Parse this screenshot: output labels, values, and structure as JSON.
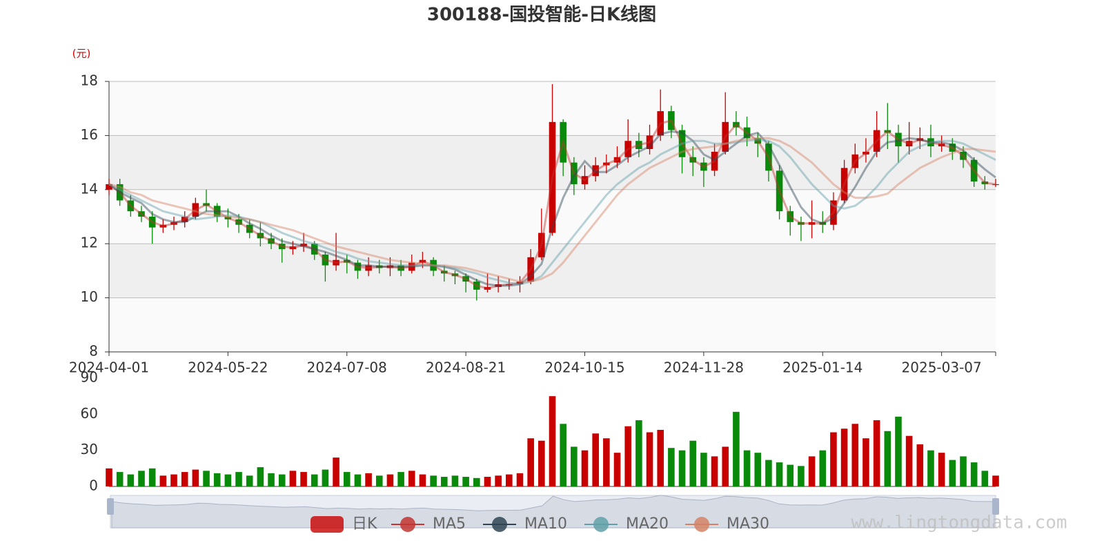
{
  "chart_data": {
    "type": "candlestick",
    "title": "300188-国投智能-日K线图",
    "y_unit": "(元)",
    "watermark": "www.lingtongdata.com",
    "ylim": [
      8,
      18
    ],
    "yticks": [
      8,
      10,
      12,
      14,
      16,
      18
    ],
    "categories": [
      "2024-04-01",
      null,
      null,
      null,
      null,
      null,
      null,
      null,
      null,
      null,
      null,
      "2024-05-22",
      null,
      null,
      null,
      null,
      null,
      null,
      null,
      null,
      null,
      null,
      "2024-07-08",
      null,
      null,
      null,
      null,
      null,
      null,
      null,
      null,
      null,
      null,
      "2024-08-21",
      null,
      null,
      null,
      null,
      null,
      null,
      null,
      null,
      null,
      null,
      "2024-10-15",
      null,
      null,
      null,
      null,
      null,
      null,
      null,
      null,
      null,
      null,
      "2024-11-28",
      null,
      null,
      null,
      null,
      null,
      null,
      null,
      null,
      null,
      null,
      "2025-01-14",
      null,
      null,
      null,
      null,
      null,
      null,
      null,
      null,
      null,
      null,
      "2025-03-07",
      null,
      null,
      null,
      null,
      null
    ],
    "candles": {
      "name": "日K",
      "up_color": "#c80000",
      "down_color": "#0a8a0a",
      "open": [
        14.0,
        14.2,
        13.6,
        13.2,
        13.0,
        12.6,
        12.7,
        12.8,
        13.0,
        13.5,
        13.4,
        13.0,
        12.9,
        12.7,
        12.4,
        12.2,
        12.0,
        11.8,
        11.9,
        12.0,
        11.6,
        11.2,
        11.4,
        11.3,
        11.0,
        11.2,
        11.1,
        11.2,
        11.0,
        11.3,
        11.4,
        11.0,
        10.9,
        10.8,
        10.6,
        10.3,
        10.4,
        10.5,
        10.5,
        10.6,
        11.5,
        12.4,
        16.5,
        15.0,
        14.2,
        14.5,
        14.9,
        15.0,
        15.2,
        15.8,
        15.5,
        16.0,
        16.9,
        16.2,
        15.2,
        15.0,
        14.7,
        15.4,
        16.5,
        16.3,
        15.9,
        15.7,
        14.7,
        13.2,
        12.8,
        12.7,
        12.8,
        12.7,
        13.6,
        14.8,
        15.3,
        15.4,
        16.2,
        16.1,
        15.6,
        15.8,
        15.9,
        15.6,
        15.7,
        15.4,
        15.1,
        14.3,
        14.2
      ],
      "close": [
        14.2,
        13.6,
        13.2,
        13.0,
        12.6,
        12.7,
        12.8,
        13.0,
        13.5,
        13.4,
        13.0,
        12.9,
        12.7,
        12.4,
        12.2,
        12.0,
        11.8,
        11.9,
        12.0,
        11.6,
        11.2,
        11.4,
        11.3,
        11.0,
        11.2,
        11.1,
        11.2,
        11.0,
        11.3,
        11.4,
        11.0,
        10.9,
        10.8,
        10.6,
        10.3,
        10.4,
        10.5,
        10.5,
        10.6,
        11.5,
        12.4,
        16.5,
        15.0,
        14.2,
        14.5,
        14.9,
        15.0,
        15.2,
        15.8,
        15.5,
        16.0,
        16.9,
        16.2,
        15.2,
        15.0,
        14.7,
        15.4,
        16.5,
        16.3,
        15.9,
        15.7,
        14.7,
        13.2,
        12.8,
        12.7,
        12.8,
        12.7,
        13.6,
        14.8,
        15.3,
        15.4,
        16.2,
        16.1,
        15.6,
        15.8,
        15.9,
        15.6,
        15.7,
        15.4,
        15.1,
        14.3,
        14.2,
        14.2
      ],
      "high": [
        14.4,
        14.4,
        13.8,
        13.4,
        13.2,
        12.9,
        13.0,
        13.2,
        13.7,
        14.0,
        13.5,
        13.3,
        13.1,
        12.9,
        12.8,
        12.4,
        12.2,
        12.1,
        12.4,
        12.1,
        11.7,
        12.4,
        11.6,
        11.4,
        11.5,
        11.4,
        11.5,
        11.4,
        11.6,
        11.7,
        11.5,
        11.2,
        11.0,
        10.9,
        10.7,
        10.9,
        10.8,
        10.7,
        10.8,
        11.8,
        13.3,
        17.9,
        16.6,
        15.2,
        14.9,
        15.2,
        15.3,
        15.6,
        16.6,
        16.1,
        16.4,
        17.7,
        17.1,
        16.4,
        15.6,
        15.2,
        15.7,
        17.6,
        16.9,
        16.7,
        16.1,
        15.8,
        14.9,
        13.4,
        13.0,
        13.6,
        13.2,
        13.9,
        15.1,
        15.7,
        15.9,
        16.9,
        17.2,
        16.4,
        16.5,
        16.3,
        16.4,
        16.0,
        15.9,
        15.6,
        15.2,
        14.5,
        14.4
      ],
      "low": [
        13.8,
        13.4,
        13.0,
        12.8,
        12.0,
        12.4,
        12.5,
        12.6,
        12.9,
        13.2,
        12.8,
        12.6,
        12.4,
        12.2,
        11.9,
        11.8,
        11.3,
        11.6,
        11.7,
        11.4,
        10.6,
        11.0,
        10.9,
        10.7,
        10.8,
        10.9,
        10.8,
        10.8,
        10.9,
        11.1,
        10.8,
        10.6,
        10.5,
        10.2,
        9.9,
        10.2,
        10.2,
        10.3,
        10.2,
        10.5,
        11.4,
        12.3,
        14.5,
        13.8,
        14.0,
        14.3,
        14.6,
        14.8,
        15.0,
        15.2,
        15.3,
        15.8,
        15.9,
        14.6,
        14.5,
        14.1,
        14.5,
        15.3,
        16.0,
        15.6,
        15.2,
        14.3,
        12.9,
        12.3,
        12.1,
        12.2,
        12.4,
        12.5,
        13.5,
        14.6,
        15.0,
        15.2,
        15.5,
        15.0,
        15.3,
        15.5,
        15.2,
        15.4,
        15.1,
        14.8,
        14.1,
        14.0,
        14.1
      ]
    },
    "series": [
      {
        "name": "MA5",
        "color": "#c23531",
        "values": [
          14.2,
          13.9,
          13.4,
          13.1,
          12.8,
          12.65,
          12.75,
          12.9,
          13.25,
          13.45,
          13.2,
          12.95,
          12.8,
          12.55,
          12.3,
          12.1,
          11.9,
          11.85,
          11.95,
          11.8,
          11.4,
          11.3,
          11.35,
          11.15,
          11.1,
          11.15,
          11.15,
          11.1,
          11.15,
          11.35,
          11.2,
          10.95,
          10.85,
          10.7,
          10.45,
          10.35,
          10.45,
          10.5,
          10.55,
          11.05,
          11.95,
          14.45,
          15.75,
          14.6,
          14.35,
          14.7,
          14.95,
          15.1,
          15.5,
          15.65,
          15.75,
          16.45,
          16.55,
          15.7,
          15.1,
          14.85,
          15.05,
          15.95,
          16.4,
          16.1,
          15.8,
          15.2,
          13.95,
          13.0,
          12.75,
          12.75,
          12.75,
          13.15,
          14.2,
          15.05,
          15.35,
          15.8,
          16.15,
          15.85,
          15.7,
          15.85,
          15.75,
          15.65,
          15.55,
          15.25,
          14.7,
          14.25,
          14.2
        ]
      },
      {
        "name": "MA10",
        "color": "#2f4554",
        "values": [
          14.2,
          13.9,
          13.7,
          13.5,
          13.1,
          12.9,
          12.8,
          12.8,
          13.0,
          13.2,
          13.2,
          13.2,
          13.0,
          12.75,
          12.55,
          12.3,
          12.1,
          12.0,
          11.9,
          11.8,
          11.7,
          11.55,
          11.4,
          11.2,
          11.2,
          11.15,
          11.15,
          11.15,
          11.15,
          11.2,
          11.2,
          11.15,
          11.05,
          10.85,
          10.65,
          10.5,
          10.45,
          10.45,
          10.5,
          10.8,
          11.25,
          12.6,
          13.7,
          14.5,
          15.05,
          14.65,
          14.65,
          14.9,
          15.2,
          15.4,
          15.6,
          16.05,
          16.15,
          16.1,
          15.8,
          15.3,
          15.1,
          15.4,
          15.7,
          16.0,
          16.1,
          15.65,
          14.9,
          14.1,
          13.35,
          12.9,
          12.75,
          12.95,
          13.5,
          14.1,
          14.8,
          15.4,
          15.75,
          15.8,
          15.9,
          15.85,
          15.75,
          15.75,
          15.65,
          15.45,
          15.1,
          14.75,
          14.45
        ]
      },
      {
        "name": "MA20",
        "color": "#61a0a8",
        "values": [
          14.2,
          14.0,
          13.8,
          13.6,
          13.4,
          13.2,
          13.1,
          13.0,
          12.9,
          12.95,
          13.0,
          13.05,
          13.0,
          12.9,
          12.8,
          12.6,
          12.4,
          12.25,
          12.1,
          12.0,
          11.85,
          11.7,
          11.6,
          11.45,
          11.35,
          11.3,
          11.25,
          11.2,
          11.2,
          11.2,
          11.2,
          11.15,
          11.1,
          11.0,
          10.9,
          10.75,
          10.65,
          10.55,
          10.5,
          10.6,
          10.8,
          11.3,
          11.8,
          12.3,
          12.8,
          13.3,
          13.8,
          14.2,
          14.5,
          14.8,
          15.0,
          15.3,
          15.5,
          15.7,
          15.8,
          15.8,
          15.7,
          15.7,
          15.75,
          15.8,
          15.85,
          15.8,
          15.6,
          15.2,
          14.7,
          14.2,
          13.8,
          13.4,
          13.3,
          13.4,
          13.7,
          14.1,
          14.6,
          15.0,
          15.4,
          15.6,
          15.75,
          15.8,
          15.8,
          15.7,
          15.5,
          15.3,
          15.1
        ]
      },
      {
        "name": "MA30",
        "color": "#d48265",
        "values": [
          14.2,
          14.1,
          13.9,
          13.8,
          13.6,
          13.5,
          13.4,
          13.3,
          13.2,
          13.1,
          13.05,
          13.0,
          12.95,
          12.9,
          12.8,
          12.7,
          12.6,
          12.5,
          12.35,
          12.2,
          12.05,
          11.9,
          11.8,
          11.7,
          11.6,
          11.5,
          11.4,
          11.35,
          11.3,
          11.25,
          11.2,
          11.2,
          11.15,
          11.1,
          11.0,
          10.9,
          10.8,
          10.7,
          10.6,
          10.6,
          10.7,
          10.9,
          11.3,
          11.8,
          12.3,
          12.8,
          13.3,
          13.8,
          14.2,
          14.5,
          14.8,
          15.0,
          15.2,
          15.4,
          15.5,
          15.55,
          15.6,
          15.7,
          15.8,
          15.85,
          15.9,
          15.9,
          15.8,
          15.6,
          15.3,
          15.0,
          14.6,
          14.2,
          13.9,
          13.7,
          13.7,
          13.75,
          13.85,
          14.2,
          14.5,
          14.8,
          15.0,
          15.2,
          15.35,
          15.5,
          15.5,
          15.45,
          15.4
        ]
      }
    ],
    "volume": {
      "ylim": [
        0,
        90
      ],
      "yticks": [
        0,
        30,
        60,
        90
      ],
      "values": [
        15,
        12,
        10,
        13,
        15,
        9,
        10,
        12,
        14,
        13,
        11,
        10,
        12,
        9,
        16,
        11,
        10,
        13,
        12,
        10,
        14,
        24,
        12,
        10,
        11,
        9,
        10,
        12,
        13,
        10,
        9,
        8,
        9,
        8,
        7,
        8,
        9,
        10,
        11,
        40,
        38,
        75,
        52,
        33,
        30,
        44,
        40,
        28,
        50,
        55,
        45,
        47,
        32,
        30,
        38,
        28,
        25,
        33,
        62,
        30,
        28,
        22,
        20,
        18,
        17,
        25,
        30,
        45,
        48,
        52,
        40,
        55,
        46,
        58,
        42,
        35,
        30,
        28,
        22,
        25,
        20,
        13,
        9
      ]
    }
  }
}
